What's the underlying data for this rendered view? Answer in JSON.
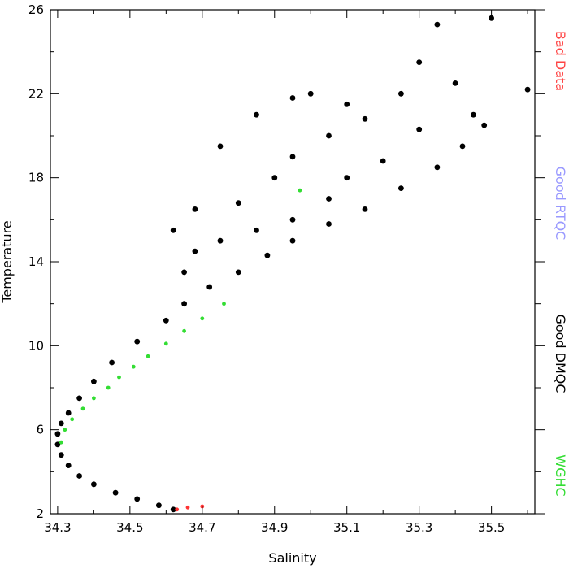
{
  "chart_data": {
    "type": "scatter",
    "title": "",
    "xlabel": "Salinity",
    "ylabel": "Temperature",
    "xlim": [
      34.28,
      35.62
    ],
    "ylim": [
      2,
      26
    ],
    "x_ticks": [
      "34.3",
      "34.5",
      "34.7",
      "34.9",
      "35.1",
      "35.3",
      "35.5"
    ],
    "x_tick_values": [
      34.3,
      34.5,
      34.7,
      34.9,
      35.1,
      35.3,
      35.5
    ],
    "y_ticks": [
      "2",
      "6",
      "10",
      "14",
      "18",
      "22",
      "26"
    ],
    "y_tick_values": [
      2,
      6,
      10,
      14,
      18,
      22,
      26
    ],
    "grid": false,
    "legend": [
      {
        "label": "Bad Data",
        "color": "#ff4444"
      },
      {
        "label": "Good RTQC",
        "color": "#9999ff"
      },
      {
        "label": "Good DMQC",
        "color": "#000000"
      },
      {
        "label": "WGHC",
        "color": "#33dd33"
      }
    ],
    "series": [
      {
        "color": "#000000",
        "points": [
          [
            34.62,
            2.2
          ],
          [
            34.58,
            2.4
          ],
          [
            34.52,
            2.7
          ],
          [
            34.46,
            3.0
          ],
          [
            34.4,
            3.4
          ],
          [
            34.36,
            3.8
          ],
          [
            34.33,
            4.3
          ],
          [
            34.31,
            4.8
          ],
          [
            34.3,
            5.3
          ],
          [
            34.3,
            5.8
          ],
          [
            34.31,
            6.3
          ],
          [
            34.33,
            6.8
          ],
          [
            34.36,
            7.5
          ],
          [
            34.4,
            8.3
          ],
          [
            34.45,
            9.2
          ],
          [
            34.52,
            10.2
          ],
          [
            34.6,
            11.2
          ],
          [
            34.65,
            12.0
          ],
          [
            34.72,
            12.8
          ],
          [
            34.8,
            13.5
          ],
          [
            34.88,
            14.3
          ],
          [
            34.95,
            15.0
          ],
          [
            35.05,
            15.8
          ],
          [
            35.15,
            16.5
          ],
          [
            35.25,
            17.5
          ],
          [
            35.35,
            18.5
          ],
          [
            35.42,
            19.5
          ],
          [
            35.48,
            20.5
          ],
          [
            34.65,
            13.5
          ],
          [
            34.68,
            14.5
          ],
          [
            34.75,
            15.0
          ],
          [
            34.85,
            15.5
          ],
          [
            34.95,
            16.0
          ],
          [
            35.05,
            17.0
          ],
          [
            34.9,
            18.0
          ],
          [
            34.95,
            19.0
          ],
          [
            35.05,
            20.0
          ],
          [
            35.15,
            20.8
          ],
          [
            35.0,
            22.0
          ],
          [
            35.1,
            21.5
          ],
          [
            35.25,
            22.0
          ],
          [
            35.3,
            23.5
          ],
          [
            35.35,
            25.3
          ],
          [
            35.5,
            25.6
          ],
          [
            34.75,
            19.5
          ],
          [
            34.85,
            21.0
          ],
          [
            34.95,
            21.8
          ],
          [
            35.4,
            22.5
          ],
          [
            35.6,
            22.2
          ],
          [
            34.68,
            16.5
          ],
          [
            35.2,
            18.8
          ],
          [
            35.1,
            18.0
          ],
          [
            34.8,
            16.8
          ],
          [
            35.3,
            20.3
          ],
          [
            35.45,
            21.0
          ],
          [
            34.62,
            15.5
          ]
        ]
      },
      {
        "color": "#ff3333",
        "points": [
          [
            34.63,
            2.2
          ],
          [
            34.66,
            2.3
          ],
          [
            34.7,
            2.35
          ]
        ]
      },
      {
        "color": "#33dd33",
        "points": [
          [
            34.31,
            5.4
          ],
          [
            34.32,
            6.0
          ],
          [
            34.34,
            6.5
          ],
          [
            34.37,
            7.0
          ],
          [
            34.4,
            7.5
          ],
          [
            34.44,
            8.0
          ],
          [
            34.47,
            8.5
          ],
          [
            34.51,
            9.0
          ],
          [
            34.55,
            9.5
          ],
          [
            34.6,
            10.1
          ],
          [
            34.65,
            10.7
          ],
          [
            34.7,
            11.3
          ],
          [
            34.76,
            12.0
          ],
          [
            34.97,
            17.4
          ]
        ]
      }
    ]
  }
}
